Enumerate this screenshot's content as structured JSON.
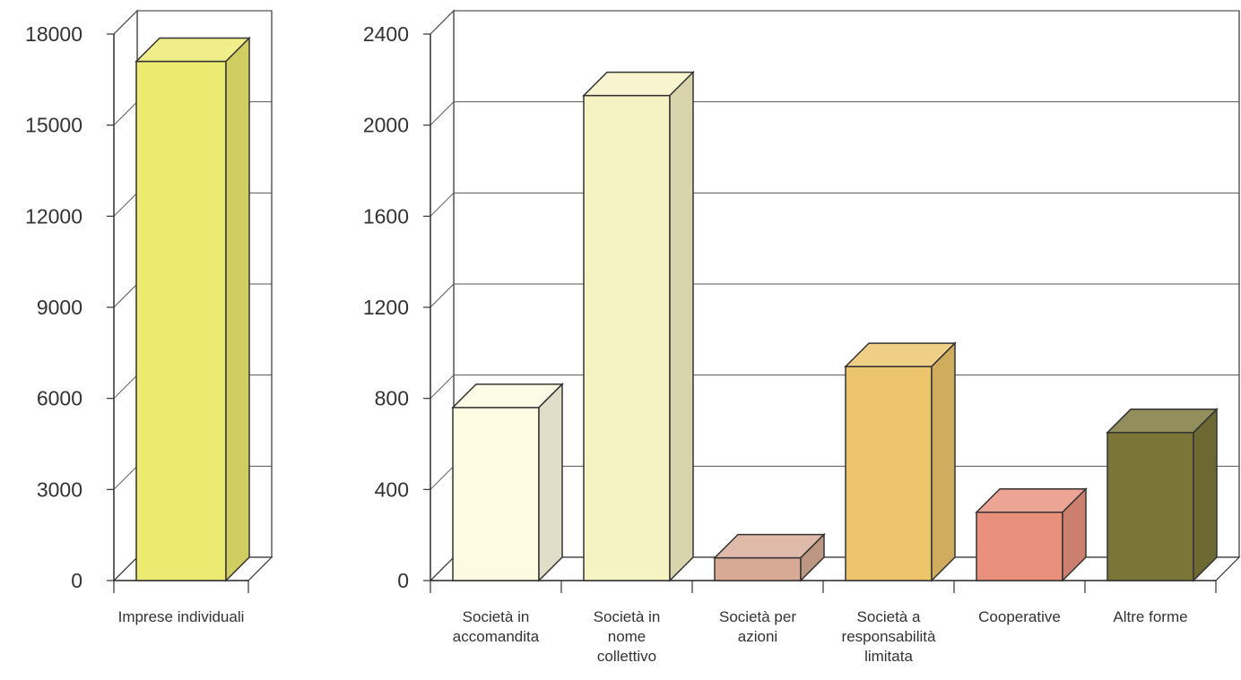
{
  "chart_data": [
    {
      "type": "bar",
      "title": "",
      "xlabel": "",
      "ylabel": "",
      "categories": [
        "Imprese individuali"
      ],
      "values": [
        17100
      ],
      "ylim": [
        0,
        18000
      ],
      "yticks": [
        0,
        3000,
        6000,
        9000,
        12000,
        15000,
        18000
      ],
      "colors": [
        "#ecea70"
      ],
      "grid": true,
      "legend": "none"
    },
    {
      "type": "bar",
      "title": "",
      "xlabel": "",
      "ylabel": "",
      "categories": [
        [
          "Società in",
          "accomandita"
        ],
        [
          "Società in",
          "nome",
          "collettivo"
        ],
        [
          "Società per",
          "azioni"
        ],
        [
          "Società a",
          "responsabilità",
          "limitata"
        ],
        [
          "Cooperative"
        ],
        [
          "Altre forme"
        ]
      ],
      "values": [
        760,
        2130,
        100,
        940,
        300,
        650
      ],
      "ylim": [
        0,
        2400
      ],
      "yticks": [
        0,
        400,
        800,
        1200,
        1600,
        2000,
        2400
      ],
      "colors": [
        "#fdfbe2",
        "#f5f2c4",
        "#d8aa96",
        "#ecc46c",
        "#e8907c",
        "#7b7638"
      ],
      "grid": true,
      "legend": "none"
    }
  ]
}
